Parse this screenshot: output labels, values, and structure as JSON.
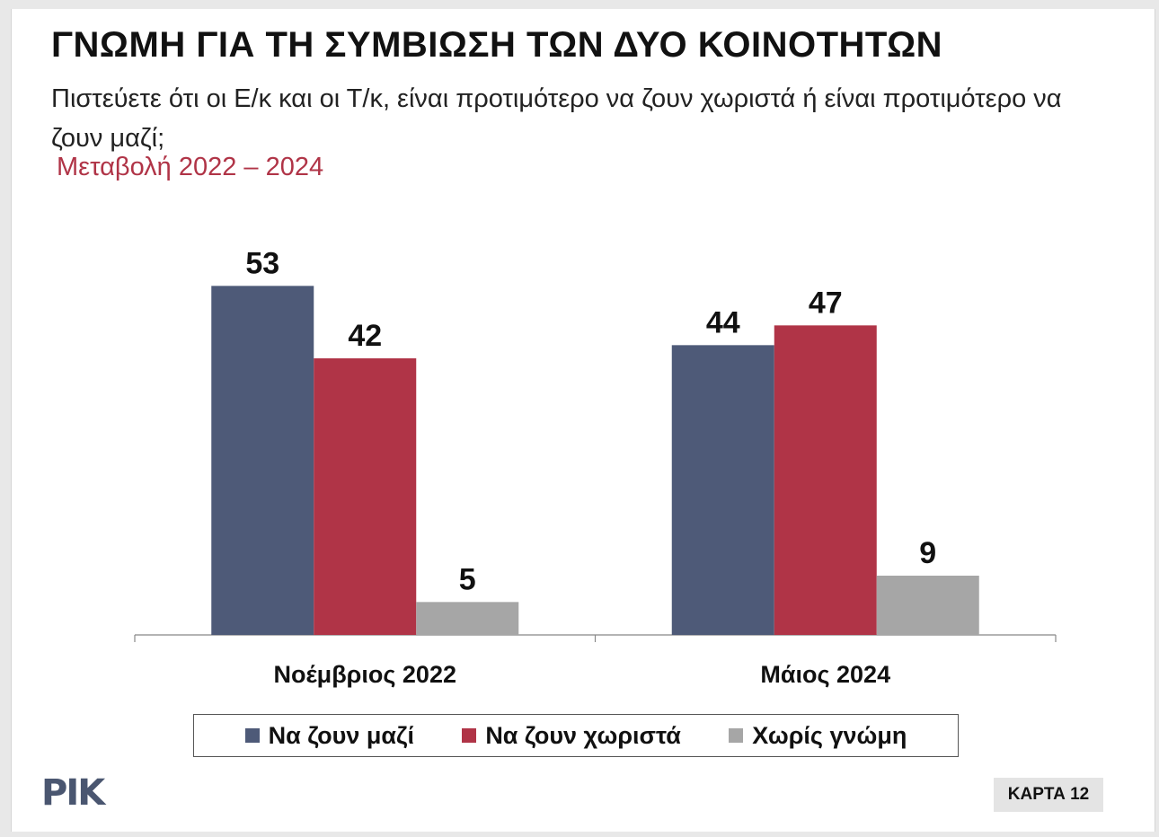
{
  "slide": {
    "title": "ΓΝΩΜΗ ΓΙΑ ΤΗ ΣΥΜΒΙΩΣΗ ΤΩΝ ΔΥΟ ΚΟΙΝΟΤΗΤΩΝ",
    "question": "Πιστεύετε ότι οι Ε/κ και οι Τ/κ, είναι προτιμότερο να ζουν χωριστά ή είναι προτιμότερο να ζουν μαζί;",
    "subtitle": "Μεταβολή 2022 – 2024",
    "logo": "ΡΙΚ",
    "badge": "ΚΑΡΤΑ 12"
  },
  "colors": {
    "series1": "#4e5a78",
    "series2": "#b03447",
    "series3": "#a6a6a6",
    "subtitle": "#b03447"
  },
  "chart_data": {
    "type": "bar",
    "categories": [
      "Νοέμβριος 2022",
      "Μάιος 2024"
    ],
    "series": [
      {
        "name": "Να ζουν μαζί",
        "values": [
          53,
          44
        ]
      },
      {
        "name": "Να ζουν χωριστά",
        "values": [
          42,
          47
        ]
      },
      {
        "name": "Χωρίς γνώμη",
        "values": [
          5,
          9
        ]
      }
    ],
    "ylim": [
      0,
      60
    ],
    "grid": false,
    "legend": "bottom"
  }
}
